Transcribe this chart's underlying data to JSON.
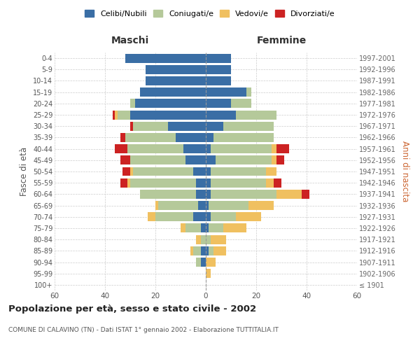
{
  "age_groups": [
    "100+",
    "95-99",
    "90-94",
    "85-89",
    "80-84",
    "75-79",
    "70-74",
    "65-69",
    "60-64",
    "55-59",
    "50-54",
    "45-49",
    "40-44",
    "35-39",
    "30-34",
    "25-29",
    "20-24",
    "15-19",
    "10-14",
    "5-9",
    "0-4"
  ],
  "birth_years": [
    "≤ 1901",
    "1902-1906",
    "1907-1911",
    "1912-1916",
    "1917-1921",
    "1922-1926",
    "1927-1931",
    "1932-1936",
    "1937-1941",
    "1942-1946",
    "1947-1951",
    "1952-1956",
    "1957-1961",
    "1962-1966",
    "1967-1971",
    "1972-1976",
    "1977-1981",
    "1982-1986",
    "1987-1991",
    "1992-1996",
    "1997-2001"
  ],
  "maschi": {
    "celibi": [
      0,
      0,
      2,
      2,
      0,
      2,
      5,
      3,
      4,
      4,
      5,
      8,
      9,
      12,
      15,
      30,
      28,
      26,
      24,
      24,
      32
    ],
    "coniugati": [
      0,
      0,
      2,
      3,
      2,
      6,
      15,
      16,
      22,
      26,
      24,
      22,
      22,
      20,
      14,
      5,
      2,
      0,
      0,
      0,
      0
    ],
    "vedovi": [
      0,
      0,
      0,
      1,
      2,
      2,
      3,
      1,
      0,
      1,
      1,
      0,
      0,
      0,
      0,
      1,
      0,
      0,
      0,
      0,
      0
    ],
    "divorziati": [
      0,
      0,
      0,
      0,
      0,
      0,
      0,
      0,
      0,
      3,
      3,
      4,
      5,
      2,
      1,
      1,
      0,
      0,
      0,
      0,
      0
    ]
  },
  "femmine": {
    "nubili": [
      0,
      0,
      0,
      1,
      0,
      1,
      2,
      1,
      2,
      2,
      2,
      4,
      2,
      3,
      7,
      12,
      10,
      16,
      10,
      10,
      10
    ],
    "coniugate": [
      0,
      0,
      0,
      2,
      2,
      6,
      10,
      16,
      26,
      22,
      22,
      22,
      24,
      24,
      20,
      16,
      8,
      2,
      0,
      0,
      0
    ],
    "vedove": [
      0,
      2,
      4,
      5,
      6,
      9,
      10,
      10,
      10,
      3,
      4,
      2,
      2,
      0,
      0,
      0,
      0,
      0,
      0,
      0,
      0
    ],
    "divorziate": [
      0,
      0,
      0,
      0,
      0,
      0,
      0,
      0,
      3,
      3,
      0,
      3,
      5,
      0,
      0,
      0,
      0,
      0,
      0,
      0,
      0
    ]
  },
  "colors": {
    "celibi": "#3a6ea5",
    "coniugati": "#b5c99a",
    "vedovi": "#f0c060",
    "divorziati": "#cc2222"
  },
  "xlim": 60,
  "title": "Popolazione per età, sesso e stato civile - 2002",
  "subtitle": "COMUNE DI CALAVINO (TN) - Dati ISTAT 1° gennaio 2002 - Elaborazione TUTTITALIA.IT",
  "ylabel_left": "Fasce di età",
  "ylabel_right": "Anni di nascita",
  "xlabel_maschi": "Maschi",
  "xlabel_femmine": "Femmine",
  "legend_labels": [
    "Celibi/Nubili",
    "Coniugati/e",
    "Vedovi/e",
    "Divorziati/e"
  ],
  "background_color": "#ffffff",
  "grid_color": "#cccccc"
}
